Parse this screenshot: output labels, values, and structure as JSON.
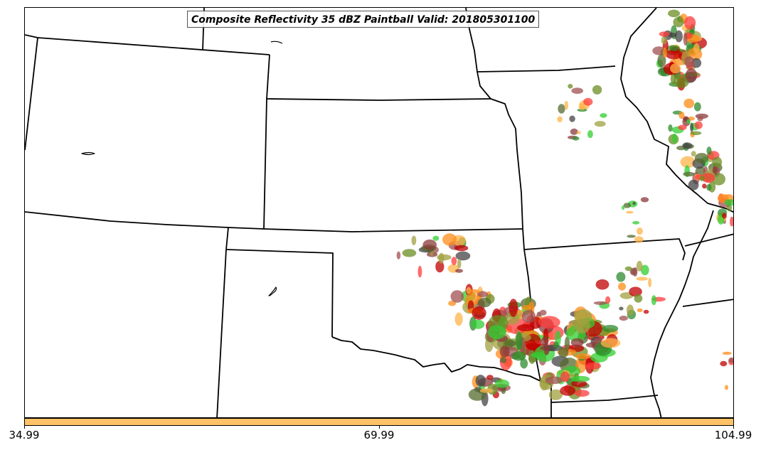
{
  "title": "Composite Reflectivity 35 dBZ Paintball Valid: 201805301100",
  "colorbar": {
    "color": "#ffc266",
    "tick_labels": [
      "34.99",
      "69.99",
      "104.99"
    ]
  },
  "map": {
    "region": "central-us",
    "boundary_color": "#000000",
    "paintball_member_colors": [
      "#ff3b3b",
      "#ff8c1a",
      "#ffb347",
      "#8b3a3a",
      "#6b8e23",
      "#2e8b2e",
      "#32cd32",
      "#c00000",
      "#556b2f",
      "#a0a040",
      "#444444",
      "#a05050"
    ]
  }
}
